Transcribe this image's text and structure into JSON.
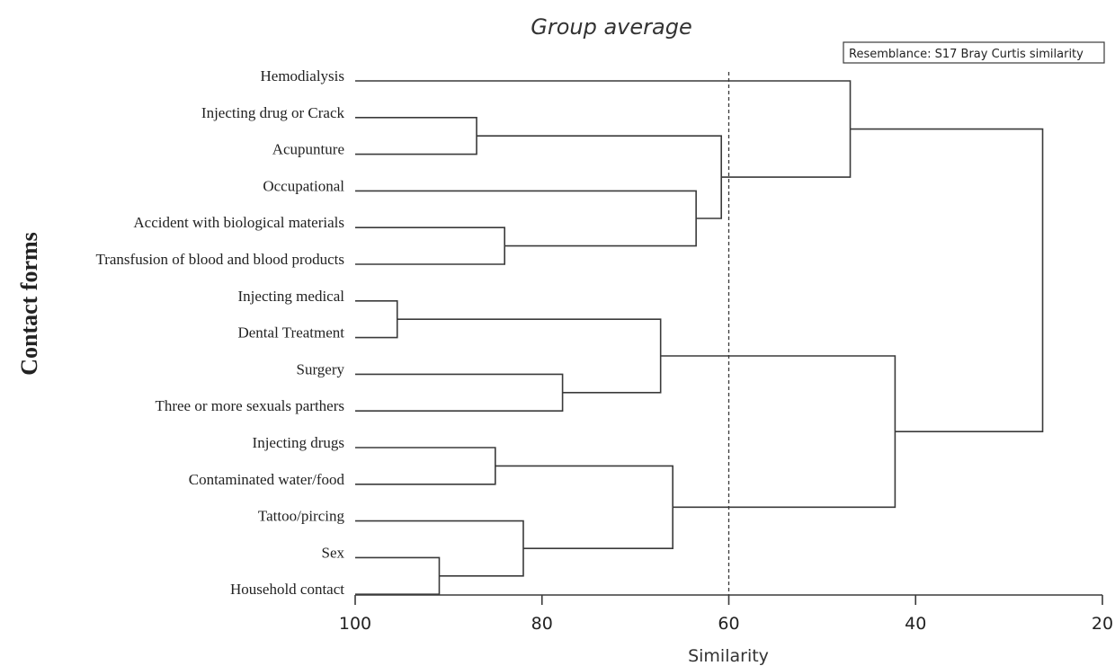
{
  "chart_data": {
    "type": "dendrogram",
    "title": "Group average",
    "xlabel": "Similarity",
    "ylabel": "Contact forms",
    "legend_note": "Resemblance: S17 Bray Curtis similarity",
    "xlim": [
      100,
      20
    ],
    "xticks": [
      "100",
      "80",
      "60",
      "40",
      "20"
    ],
    "xtick_values": [
      100,
      80,
      60,
      40,
      20
    ],
    "reference_line": 60,
    "leaves": [
      "Hemodialysis",
      "Injecting  drug or Crack",
      "Acupunture",
      "Occupational",
      "Accident  with biological materials",
      "Transfusion  of blood and blood products",
      "Injecting  medical",
      "Dental  Treatment",
      "Surgery",
      "Three or more sexuals parthers",
      "Injecting drugs",
      "Contaminated  water/food",
      "Tattoo/pircing",
      "Sex",
      "Household  contact"
    ],
    "merges": [
      {
        "left": "Injecting  drug or Crack",
        "right": "Acupunture",
        "similarity": 87
      },
      {
        "left": "Accident  with biological materials",
        "right": "Transfusion  of blood and blood products",
        "similarity": 84
      },
      {
        "left": "Occupational",
        "right": "cluster(Accident, Transfusion)",
        "similarity": 63.5
      },
      {
        "left": "cluster(Injecting drug or Crack, Acupunture)",
        "right": "cluster(Occupational, Accident, Transfusion)",
        "similarity": 60.8
      },
      {
        "left": "Hemodialysis",
        "right": "cluster(Injecting drug or Crack ... Transfusion)",
        "similarity": 47
      },
      {
        "left": "Injecting  medical",
        "right": "Dental  Treatment",
        "similarity": 95.5
      },
      {
        "left": "Surgery",
        "right": "Three or more sexuals parthers",
        "similarity": 77.8
      },
      {
        "left": "cluster(Injecting medical, Dental Treatment)",
        "right": "cluster(Surgery, Three or more sexuals parthers)",
        "similarity": 67.3
      },
      {
        "left": "Injecting drugs",
        "right": "Contaminated  water/food",
        "similarity": 85
      },
      {
        "left": "Sex",
        "right": "Household  contact",
        "similarity": 91
      },
      {
        "left": "Tattoo/pircing",
        "right": "cluster(Sex, Household contact)",
        "similarity": 82
      },
      {
        "left": "cluster(Injecting drugs, Contaminated water/food)",
        "right": "cluster(Tattoo/pircing, Sex, Household contact)",
        "similarity": 66
      },
      {
        "left": "cluster(Injecting medical ... Three or more sexuals parthers)",
        "right": "cluster(Injecting drugs ... Household contact)",
        "similarity": 42.2
      },
      {
        "left": "cluster(Hemodialysis ... Transfusion)",
        "right": "cluster(Injecting medical ... Household contact)",
        "similarity": 26.4
      }
    ]
  }
}
